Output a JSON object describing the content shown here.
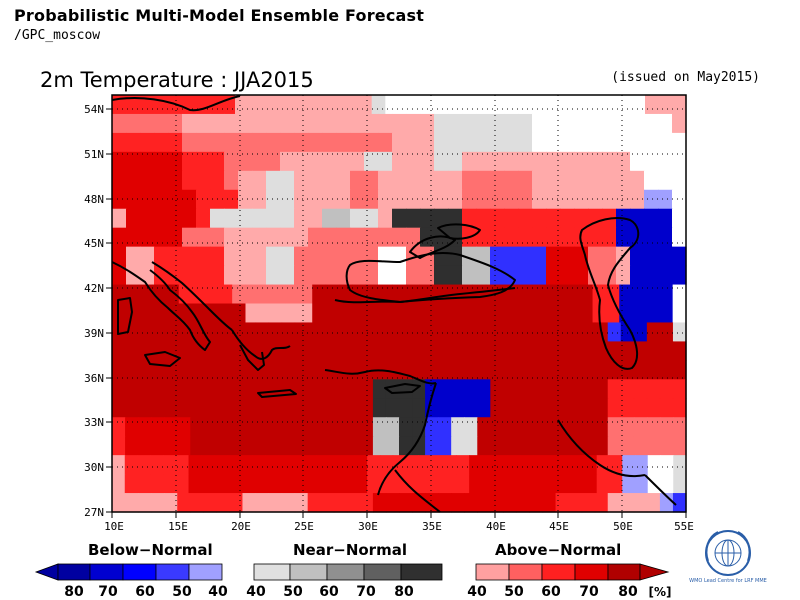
{
  "header": {
    "title": "Probabilistic Multi-Model Ensemble Forecast",
    "source": "/GPC_moscow",
    "map_title": "2m Temperature : JJA2015",
    "issued": "(issued on May2015)"
  },
  "axes": {
    "lat_labels": [
      "54N",
      "51N",
      "48N",
      "45N",
      "42N",
      "39N",
      "36N",
      "33N",
      "30N",
      "27N"
    ],
    "lon_labels": [
      "10E",
      "15E",
      "20E",
      "25E",
      "30E",
      "35E",
      "40E",
      "45E",
      "50E",
      "55E"
    ]
  },
  "legend": {
    "below": {
      "title": "Below−Normal",
      "ticks": [
        "80",
        "70",
        "60",
        "50",
        "40"
      ],
      "colors": [
        "#0000a0",
        "#0000d0",
        "#0000ff",
        "#3a3aff",
        "#a0a0ff"
      ]
    },
    "near": {
      "title": "Near−Normal",
      "ticks": [
        "40",
        "50",
        "60",
        "70",
        "80"
      ],
      "colors": [
        "#e0e0e0",
        "#c0c0c0",
        "#909090",
        "#606060",
        "#303030"
      ]
    },
    "above": {
      "title": "Above−Normal",
      "ticks": [
        "40",
        "50",
        "60",
        "70",
        "80"
      ],
      "colors": [
        "#ffa0a0",
        "#ff6060",
        "#ff2020",
        "#e00000",
        "#b00000"
      ]
    },
    "unit": "[%]"
  },
  "logo": {
    "name": "wmo-emblem-icon",
    "caption": "WMO Lead Centre for LRF MME"
  },
  "colors": {
    "W": "#ffffff",
    "A1": "#ffaaaa",
    "A2": "#ff7070",
    "A3": "#ff2222",
    "A4": "#e00000",
    "A5": "#c00000",
    "N1": "#dedede",
    "N2": "#c0c0c0",
    "N5": "#2f2f2f",
    "B1": "#a0a0ff",
    "B3": "#3030ff",
    "B5": "#0000cc"
  },
  "grid": [
    "A3 A3 A3 A3 A3 A3 A3 A3 A3 A1 A1 A1 A1 A1 A1 A1 A1 A1 A1 N1 W W W W W W W W W W W W W W W W W W W A1 A1 A1",
    "A2 A2 A2 A2 A2 A1 A1 A1 A1 A1 A1 A1 A1 A1 A1 A1 A1 A1 A1 A1 A1 A1 A1 N1 N1 N1 N1 N1 N1 N1 W W W W W W W W W W A1",
    "A3 A3 A3 A3 A3 A2 A2 A2 A2 A2 A2 A2 A2 A2 A2 A2 A2 A2 A2 A2 A1 A1 A1 N1 N1 N1 N1 N1 N1 N1 W W W W W W W W W W W",
    "A4 A4 A4 A4 A4 A3 A3 A3 A2 A2 A2 A2 A1 A1 A1 A1 A1 A1 N1 N1 A1 A1 A1 N1 N1 A1 A1 A1 A1 A1 A1 A1 A1 A1 A1 A1 A1 W W W W",
    "A4 A4 A4 A4 A4 A3 A3 A3 A2 A1 A1 N1 N1 A1 A1 A1 A1 A2 A2 A1 A1 A1 A1 A1 A1 A2 A2 A2 A2 A2 A1 A1 A1 A1 A1 A1 A1 A1 W W W",
    "A4 A4 A4 A4 A4 A4 A3 A3 A3 A1 A1 N1 N1 A1 A1 A1 A1 A2 A2 A1 A1 A1 A1 A1 A1 A2 A2 A2 A2 A2 A1 A1 A1 A1 A1 A1 A1 A1 B1 B1 W",
    "A1 A4 A4 A4 A4 A4 A3 N1 N1 N1 N1 N1 N1 A1 A1 N2 N2 N1 N1 A1 N5 N5 N5 N5 N5 A3 A3 A3 A3 A3 A3 A3 A3 A3 A3 A3 B5 B5 B5 B5 W",
    "A4 A4 A4 A4 A4 A2 A2 A2 A1 A1 A1 A1 A1 A1 A2 A2 A2 A2 A2 A2 A2 A2 N5 N5 N5 A3 A3 A3 A3 A3 A3 A3 A3 A3 A3 A3 B5 B5 B5 B5 W",
    "A4 A1 A1 A3 A3 A3 A3 A3 A1 A1 A1 N1 N1 A2 A2 A2 A2 A2 A2 W W A2 A2 N5 N5 N2 N2 B3 B3 B3 B3 A4 A4 A4 A2 A2 A1 B5 B5 B5 B5",
    "A4 A1 A1 A3 A3 A3 A3 A3 A1 A1 A1 N1 N1 A2 A2 A2 A2 A2 A2 W W A2 A2 N5 N5 N2 N2 B3 B3 B3 B3 A4 A4 A4 A2 A2 A1 B5 B5 B5 B5",
    "A5 A5 A5 A5 A5 A3 A3 A3 A3 A2 A2 A2 A2 A2 A2 A5 A5 A5 A5 A5 A5 A5 A5 A5 A5 A5 A5 A5 A5 A5 A5 A5 A5 A5 A5 A5 A3 A3 B5 B5 B5 B5 W",
    "A5 A5 A5 A5 A5 A5 A5 A5 A5 A5 A1 A1 A1 A1 A1 A5 A5 A5 A5 A5 A5 A5 A5 A5 A5 A5 A5 A5 A5 A5 A5 A5 A5 A5 A5 A5 A3 A3 B5 B5 B5 B5 W",
    "A5 A5 A5 A5 A5 A5 A5 A5 A5 A5 A5 A5 A5 A5 A5 A5 A5 A5 A5 A5 A5 A5 A5 A5 A5 A5 A5 A5 A5 A5 A5 A5 A5 A5 A5 A5 A5 A5 B3 B5 B5 A5 A5 N1",
    "A5 A5 A5 A5 A5 A5 A5 A5 A5 A5 A5 A5 A5 A5 A5 A5 A5 A5 A5 A5 A5 A5 A5 A5 A5 A5 A5 A5 A5 A5 A5 A5 A5 A5 A5 A5 A5 A5 A5 A5 A5 A5 A5 A5",
    "A5 A5 A5 A5 A5 A5 A5 A5 A5 A5 A5 A5 A5 A5 A5 A5 A5 A5 A5 A5 A5 A5 A5 A5 A5 A5 A5 A5 A5 A5 A5 A5 A5 A5 A5 A5 A5 A5 A5 A5 A5 A5 A5 A5",
    "A5 A5 A5 A5 A5 A5 A5 A5 A5 A5 A5 A5 A5 A5 A5 A5 A5 A5 A5 A5 N5 N5 N5 N5 B5 B5 B5 B5 B5 A5 A5 A5 A5 A5 A5 A5 A5 A5 A3 A3 A3 A3 A3 A3",
    "A5 A5 A5 A5 A5 A5 A5 A5 A5 A5 A5 A5 A5 A5 A5 A5 A5 A5 A5 A5 N5 N5 N5 N5 B5 B5 B5 B5 B5 A5 A5 A5 A5 A5 A5 A5 A5 A5 A3 A3 A3 A3 A3 A3",
    "A3 A4 A4 A4 A4 A4 A5 A5 A5 A5 A5 A5 A5 A5 A5 A5 A5 A5 A5 A5 N2 N2 N5 N5 B3 B3 N1 N1 A5 A5 A5 A5 A5 A5 A5 A5 A5 A5 A2 A2 A2 A2 A2 A2",
    "A3 A4 A4 A4 A4 A4 A5 A5 A5 A5 A5 A5 A5 A5 A5 A5 A5 A5 A5 A5 N2 N2 N5 N5 B3 B3 N1 N1 A5 A5 A5 A5 A5 A5 A5 A5 A5 A5 A2 A2 A2 A2 A2 A2",
    "A1 A3 A3 A3 A3 A3 A4 A4 A4 A4 A4 A4 A4 A4 A4 A4 A4 A4 A4 A4 A3 A3 A3 A3 A3 A3 A3 A3 A4 A4 A4 A4 A4 A4 A4 A4 A4 A4 A3 A3 B1 B1 W W N1",
    "A1 A3 A3 A3 A3 A3 A4 A4 A4 A4 A4 A4 A4 A4 A4 A4 A4 A4 A4 A4 A3 A3 A3 A3 A3 A3 A3 A3 A4 A4 A4 A4 A4 A4 A4 A4 A4 A4 A3 A3 B1 B1 W W N1",
    "A1 A1 A1 A1 A1 A3 A3 A3 A3 A3 A1 A1 A1 A1 A1 A3 A3 A3 A3 A3 A4 A4 A4 A4 A4 A4 A4 A4 A4 A4 A4 A4 A4 A4 A3 A3 A3 A3 A1 A1 A1 A1 B1 B3"
  ]
}
